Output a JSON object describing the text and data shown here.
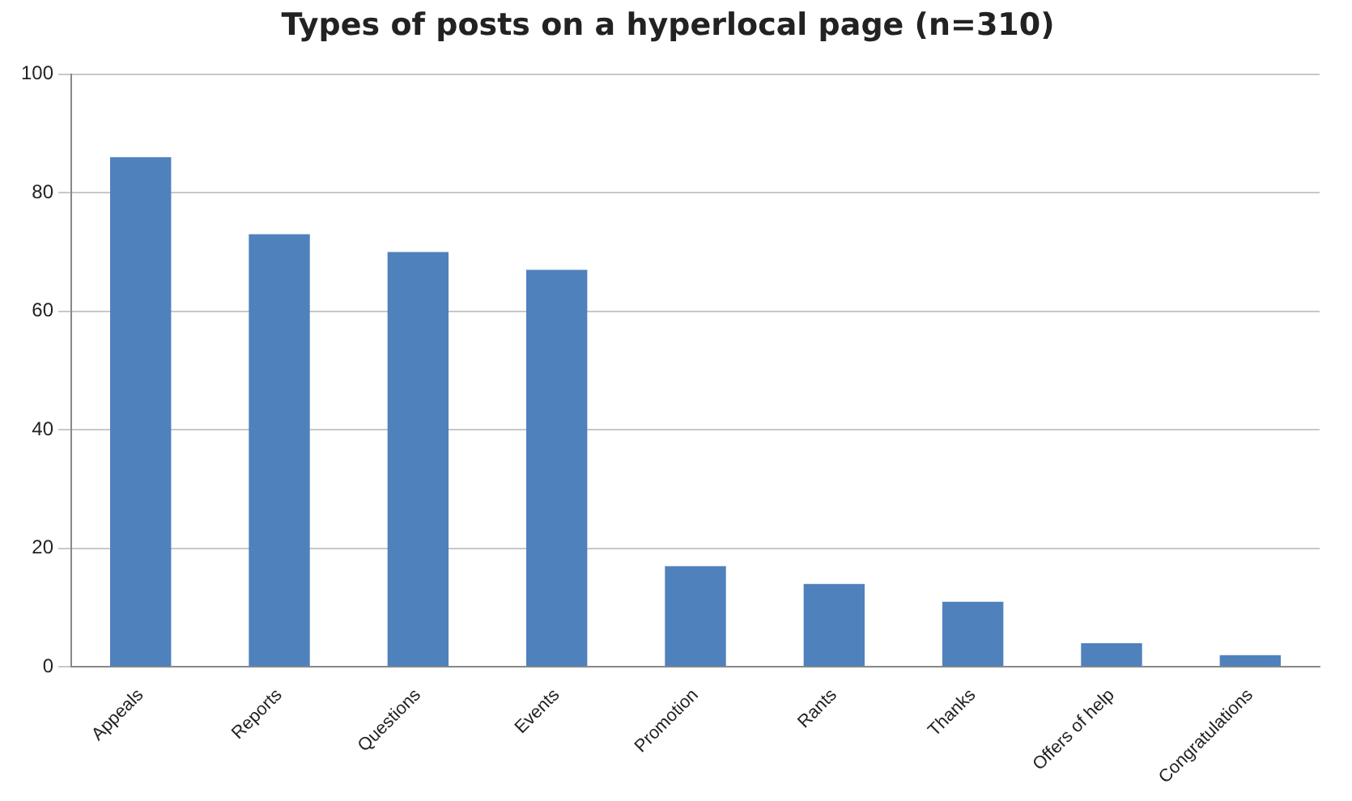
{
  "chart_data": {
    "type": "bar",
    "title": "Types of posts on a hyperlocal page (n=310)",
    "categories": [
      "Appeals",
      "Reports",
      "Questions",
      "Events",
      "Promotion",
      "Rants",
      "Thanks",
      "Offers of help",
      "Congratulations"
    ],
    "values": [
      86,
      73,
      70,
      67,
      17,
      14,
      11,
      4,
      2
    ],
    "color": "#4f81bd",
    "ylim": [
      0,
      100
    ],
    "yticks": [
      0,
      20,
      40,
      60,
      80,
      100
    ],
    "grid": "y"
  }
}
